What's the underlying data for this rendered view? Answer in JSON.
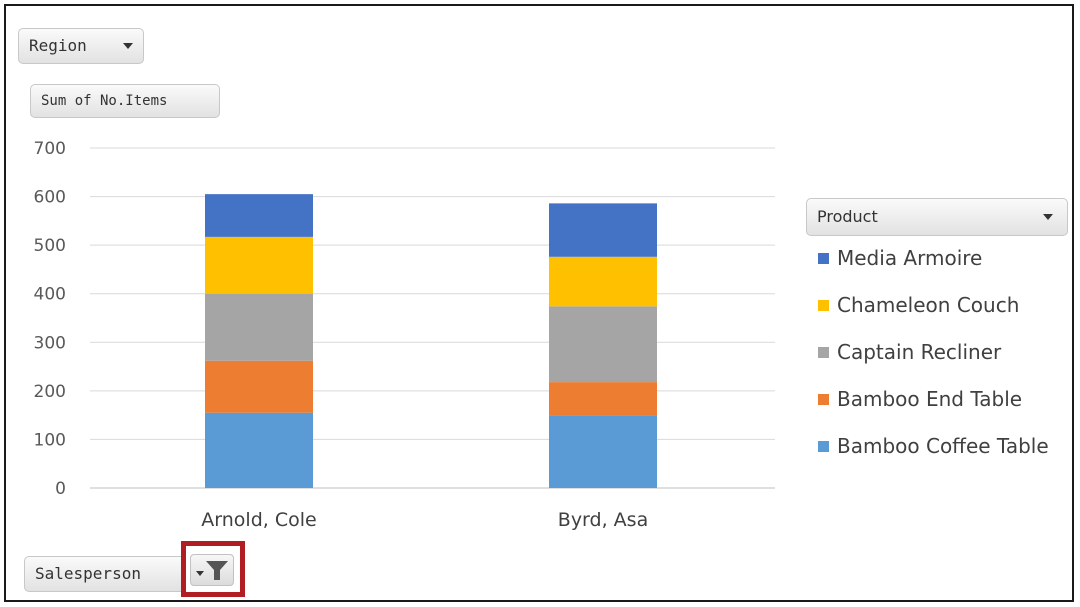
{
  "filters": {
    "region_label": "Region",
    "measure_label": "Sum of No.Items",
    "salesperson_label": "Salesperson",
    "product_label": "Product",
    "filter_icon": "funnel-dropdown-icon"
  },
  "chart_data": {
    "type": "bar",
    "stacked": true,
    "categories": [
      "Arnold, Cole",
      "Byrd, Asa"
    ],
    "series": [
      {
        "name": "Bamboo Coffee Table",
        "color": "#5B9BD5",
        "values": [
          155,
          150
        ]
      },
      {
        "name": "Bamboo End Table",
        "color": "#ED7D31",
        "values": [
          107,
          68
        ]
      },
      {
        "name": "Captain Recliner",
        "color": "#A5A5A5",
        "values": [
          138,
          156
        ]
      },
      {
        "name": "Chameleon Couch",
        "color": "#FFC000",
        "values": [
          117,
          102
        ]
      },
      {
        "name": "Media Armoire",
        "color": "#4472C4",
        "values": [
          88,
          110
        ]
      }
    ],
    "yticks": [
      0,
      100,
      200,
      300,
      400,
      500,
      600,
      700
    ],
    "ylim": [
      0,
      700
    ],
    "grid": true,
    "legend_position": "right",
    "legend_order": [
      "Media Armoire",
      "Chameleon Couch",
      "Captain Recliner",
      "Bamboo End Table",
      "Bamboo Coffee Table"
    ]
  }
}
